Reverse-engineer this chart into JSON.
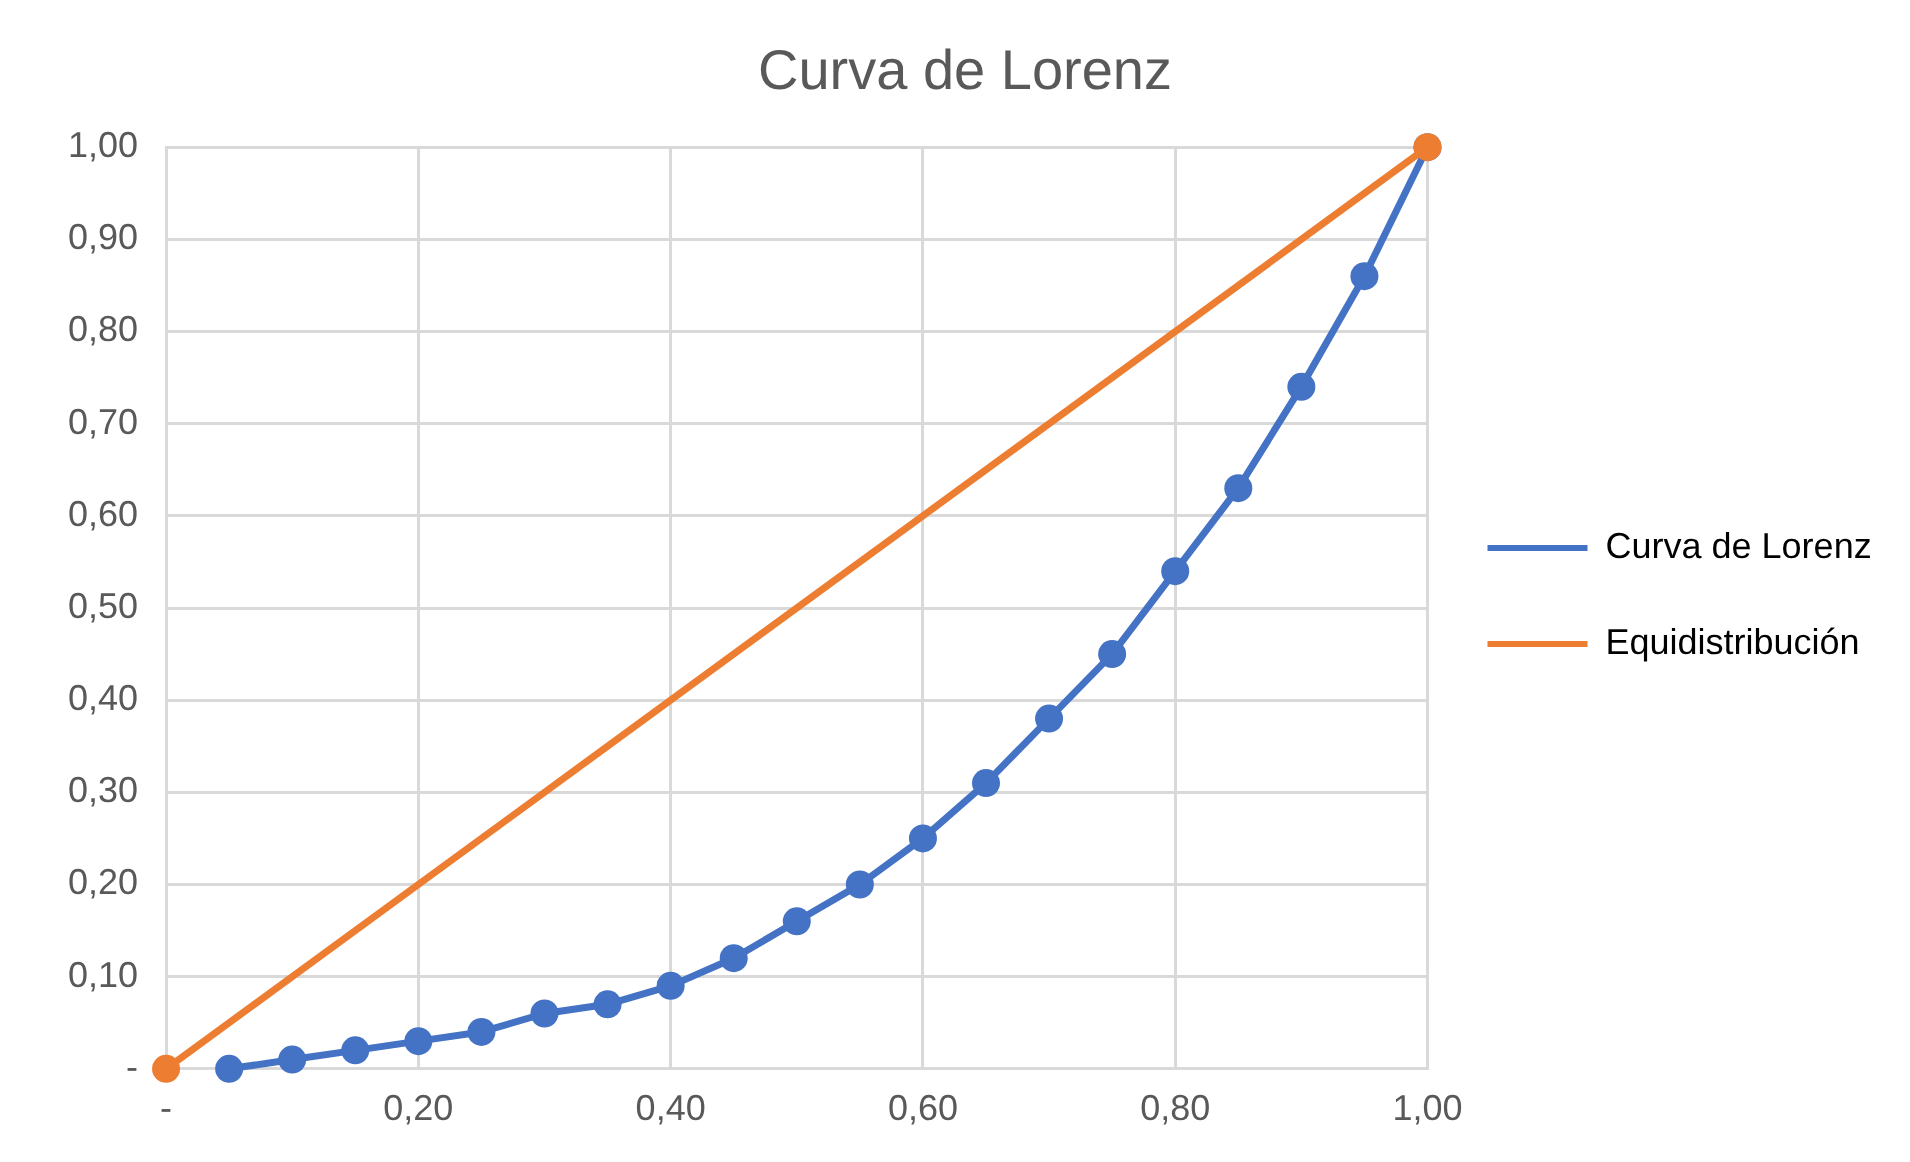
{
  "chart_data": {
    "type": "line",
    "title": "Curva de Lorenz",
    "legend": "right",
    "grid": true,
    "marker": "circle",
    "line_style": "solid",
    "xlim": [
      0,
      1
    ],
    "xticks": [
      {
        "value": 0,
        "label": "-"
      },
      {
        "value": 0.2,
        "label": "0,20"
      },
      {
        "value": 0.4,
        "label": "0,40"
      },
      {
        "value": 0.6,
        "label": "0,60"
      },
      {
        "value": 0.8,
        "label": "0,80"
      },
      {
        "value": 1,
        "label": "1,00"
      }
    ],
    "ylim": [
      0,
      1
    ],
    "yticks": [
      {
        "value": 0,
        "label": "-"
      },
      {
        "value": 0.1,
        "label": "0,10"
      },
      {
        "value": 0.2,
        "label": "0,20"
      },
      {
        "value": 0.3,
        "label": "0,30"
      },
      {
        "value": 0.4,
        "label": "0,40"
      },
      {
        "value": 0.5,
        "label": "0,50"
      },
      {
        "value": 0.6,
        "label": "0,60"
      },
      {
        "value": 0.7,
        "label": "0,70"
      },
      {
        "value": 0.8,
        "label": "0,80"
      },
      {
        "value": 0.9,
        "label": "0,90"
      },
      {
        "value": 1,
        "label": "1,00"
      }
    ],
    "series": [
      {
        "name": "Curva de Lorenz",
        "color": "#4472c4",
        "x": [
          0.05,
          0.1,
          0.15,
          0.2,
          0.25,
          0.3,
          0.35,
          0.4,
          0.45,
          0.5,
          0.55,
          0.6,
          0.65,
          0.7,
          0.75,
          0.8,
          0.85,
          0.9,
          0.95,
          1
        ],
        "values": [
          0.0,
          0.01,
          0.02,
          0.03,
          0.04,
          0.06,
          0.07,
          0.09,
          0.12,
          0.16,
          0.2,
          0.25,
          0.31,
          0.38,
          0.45,
          0.54,
          0.63,
          0.74,
          0.86,
          1
        ]
      },
      {
        "name": "Equidistribución",
        "color": "#ed7d31",
        "x": [
          0,
          1
        ],
        "values": [
          0,
          1
        ]
      }
    ]
  }
}
